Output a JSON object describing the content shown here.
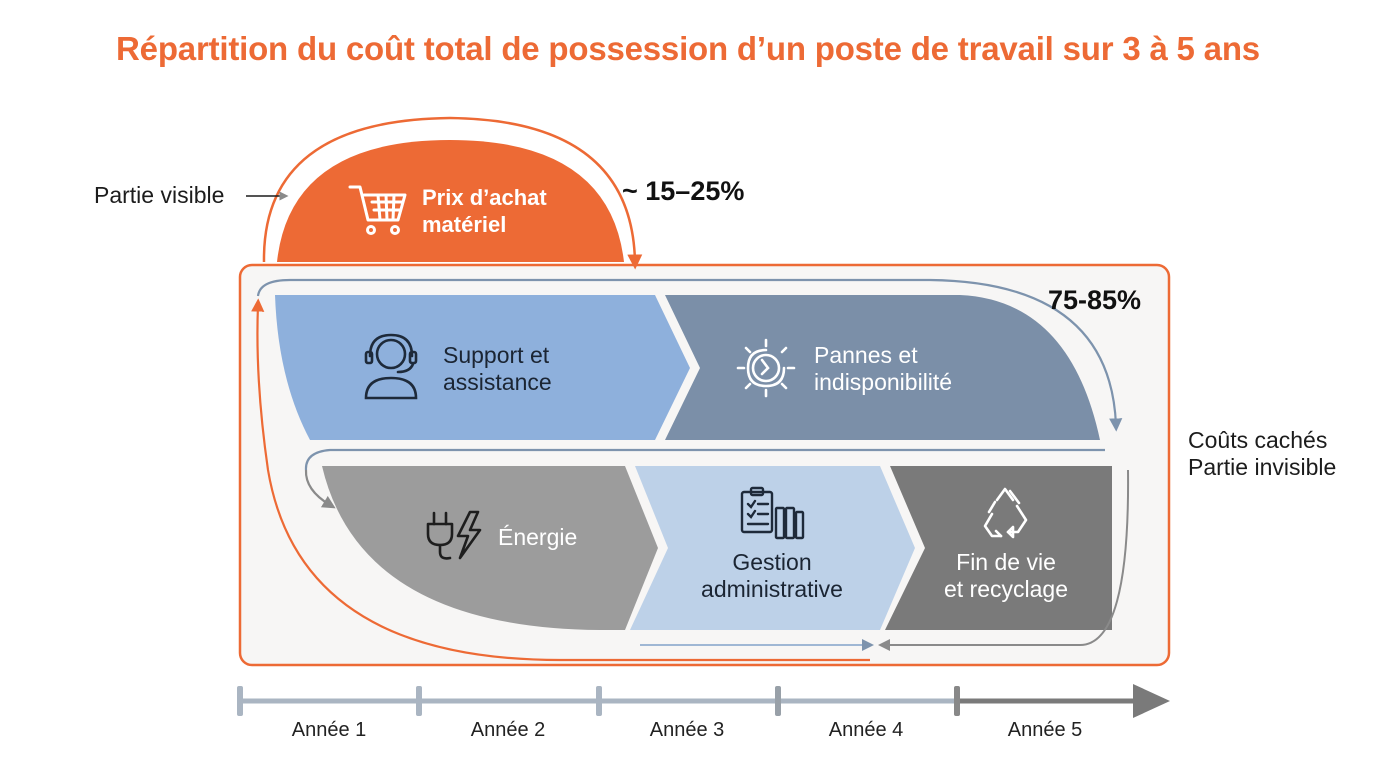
{
  "title": "Répartition du coût total de possession d’un poste de travail sur 3 à 5 ans",
  "visible": {
    "side_label": "Partie visible",
    "item": {
      "line1": "Prix d’achat",
      "line2": "matériel",
      "icon": "shopping-cart-icon"
    },
    "percentage": "~ 15–25%"
  },
  "hidden": {
    "percentage": "75-85%",
    "side_label_line1": "Coûts cachés",
    "side_label_line2": "Partie invisible",
    "row1": [
      {
        "line1": "Support et",
        "line2": "assistance",
        "icon": "headset-user-icon"
      },
      {
        "line1": "Pannes et",
        "line2": "indisponibilité",
        "icon": "broken-gear-icon"
      }
    ],
    "row2": [
      {
        "line1": "Énergie",
        "icon": "plug-lightning-icon"
      },
      {
        "line1": "Gestion",
        "line2": "administrative",
        "icon": "clipboard-binders-icon"
      },
      {
        "line1": "Fin de vie",
        "line2": "et recyclage",
        "icon": "recycle-icon"
      }
    ]
  },
  "timeline": [
    "Année 1",
    "Année 2",
    "Année 3",
    "Année 4",
    "Année 5"
  ],
  "colors": {
    "accent": "#ed6a35",
    "support": "#8eb0dc",
    "pannes": "#7b8fa8",
    "energie": "#9c9c9c",
    "gestion": "#bdd1e8",
    "recyclage": "#7a7a7a",
    "panel_bg": "#f7f6f5"
  }
}
